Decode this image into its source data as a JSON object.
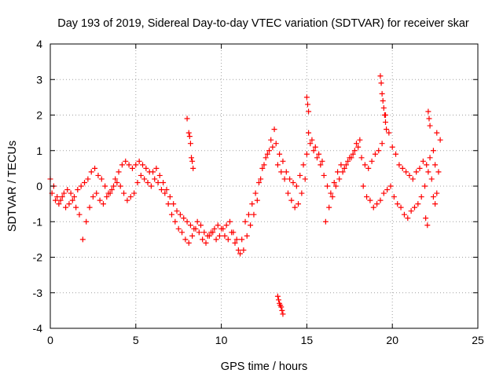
{
  "chart_data": {
    "type": "scatter",
    "title": "Day 193 of 2019, Sidereal Day-to-day VTEC variation (SDTVAR) for receiver skar",
    "xlabel": "GPS time / hours",
    "ylabel": "SDTVAR / TECUs",
    "xlim": [
      0,
      25
    ],
    "ylim": [
      -4,
      4
    ],
    "xticks": [
      0,
      5,
      10,
      15,
      20,
      25
    ],
    "yticks": [
      -4,
      -3,
      -2,
      -1,
      0,
      1,
      2,
      3,
      4
    ],
    "grid": true,
    "marker": "+",
    "marker_color": "#ff0000",
    "series": [
      {
        "name": "SDTVAR",
        "x": [
          0.0,
          0.2,
          0.4,
          0.6,
          0.8,
          1.0,
          1.2,
          1.4,
          1.6,
          1.8,
          2.0,
          2.2,
          2.4,
          2.6,
          2.8,
          3.0,
          3.2,
          3.4,
          3.6,
          3.8,
          4.0,
          4.2,
          4.4,
          4.6,
          4.8,
          5.0,
          5.2,
          5.4,
          5.6,
          5.8,
          6.0,
          6.2,
          6.4,
          6.6,
          6.8,
          7.0,
          7.2,
          7.4,
          7.6,
          7.8,
          8.0,
          8.2,
          8.4,
          8.6,
          8.8,
          9.0,
          9.2,
          9.4,
          9.6,
          9.8,
          10.0,
          10.2,
          10.4,
          10.6,
          10.8,
          11.0,
          11.2,
          11.4,
          11.6,
          11.8,
          12.0,
          12.2,
          12.4,
          12.6,
          12.8,
          13.0,
          13.2,
          13.4,
          13.6,
          13.8,
          14.0,
          14.2,
          14.4,
          14.6,
          14.8,
          15.0,
          15.2,
          15.4,
          15.6,
          15.8,
          16.0,
          16.2,
          16.4,
          16.6,
          16.8,
          17.0,
          17.2,
          17.4,
          17.6,
          17.8,
          18.0,
          18.2,
          18.4,
          18.6,
          18.8,
          19.0,
          19.2,
          19.4,
          19.6,
          19.8,
          20.0,
          20.2,
          20.4,
          20.6,
          20.8,
          21.0,
          21.2,
          21.4,
          21.6,
          21.8,
          22.0,
          22.2,
          22.4,
          22.6,
          22.8
        ],
        "y": [
          0.2,
          0.0,
          -0.3,
          -0.4,
          -0.2,
          -0.1,
          -0.2,
          -0.3,
          -0.1,
          0.0,
          0.1,
          0.2,
          0.4,
          0.5,
          0.3,
          0.2,
          0.0,
          -0.2,
          -0.1,
          0.2,
          0.4,
          0.6,
          0.7,
          0.6,
          0.5,
          0.6,
          0.7,
          0.6,
          0.5,
          0.4,
          0.4,
          0.5,
          0.3,
          0.1,
          -0.1,
          -0.3,
          -0.5,
          -0.7,
          -0.8,
          -0.9,
          -1.0,
          -1.1,
          -1.2,
          -1.0,
          -1.1,
          -1.3,
          -1.4,
          -1.3,
          -1.2,
          -1.1,
          -1.2,
          -1.4,
          -1.5,
          -1.3,
          -1.6,
          -1.8,
          -1.5,
          -1.0,
          -0.8,
          -0.5,
          -0.2,
          0.1,
          0.5,
          0.8,
          1.0,
          1.1,
          1.2,
          0.9,
          0.7,
          0.4,
          0.2,
          0.1,
          0.0,
          0.3,
          0.6,
          0.9,
          1.2,
          1.0,
          0.8,
          0.6,
          0.3,
          0.0,
          -0.2,
          0.1,
          0.4,
          0.6,
          0.5,
          0.7,
          0.8,
          1.0,
          1.1,
          0.8,
          0.6,
          0.5,
          0.7,
          0.9,
          1.0,
          1.2,
          2.0,
          1.5,
          1.1,
          0.9,
          0.6,
          0.5,
          0.4,
          0.3,
          0.2,
          0.4,
          0.5,
          0.7,
          0.6,
          0.8,
          1.0,
          1.5,
          1.3
        ]
      },
      {
        "name": "SDTVAR",
        "x": [
          0.1,
          0.3,
          0.5,
          0.7,
          0.9,
          1.1,
          1.3,
          1.5,
          1.7,
          1.9,
          2.1,
          2.3,
          2.5,
          2.7,
          2.9,
          3.1,
          3.3,
          3.5,
          3.7,
          3.9,
          4.1,
          4.3,
          4.5,
          4.7,
          4.9,
          5.1,
          5.3,
          5.5,
          5.7,
          5.9,
          6.1,
          6.3,
          6.5,
          6.7,
          6.9,
          7.1,
          7.3,
          7.5,
          7.7,
          7.9,
          8.1,
          8.3,
          8.5,
          8.7,
          8.9,
          9.1,
          9.3,
          9.5,
          9.7,
          9.9,
          10.1,
          10.3,
          10.5,
          10.7,
          10.9,
          11.1,
          11.3,
          11.5,
          11.7,
          11.9,
          12.1,
          12.3,
          12.5,
          12.7,
          12.9,
          13.1,
          13.3,
          13.5,
          13.7,
          13.9,
          14.1,
          14.3,
          14.5,
          14.7,
          14.9,
          15.1,
          15.3,
          15.5,
          15.7,
          15.9,
          16.1,
          16.3,
          16.5,
          16.7,
          16.9,
          17.1,
          17.3,
          17.5,
          17.7,
          17.9,
          18.1,
          18.3,
          18.5,
          18.7,
          18.9,
          19.1,
          19.3,
          19.5,
          19.7,
          19.9,
          20.1,
          20.3,
          20.5,
          20.7,
          20.9,
          21.1,
          21.3,
          21.5,
          21.7,
          21.9,
          22.1,
          22.3,
          22.5,
          22.7
        ],
        "y": [
          -0.2,
          -0.4,
          -0.5,
          -0.3,
          -0.6,
          -0.5,
          -0.4,
          -0.6,
          -0.8,
          -1.5,
          -1.0,
          -0.6,
          -0.3,
          -0.2,
          -0.4,
          -0.5,
          -0.3,
          -0.2,
          0.0,
          0.1,
          0.0,
          -0.2,
          -0.4,
          -0.3,
          -0.2,
          0.1,
          0.3,
          0.2,
          0.1,
          0.0,
          0.2,
          0.1,
          -0.1,
          -0.2,
          -0.5,
          -0.8,
          -1.0,
          -1.2,
          -1.3,
          -1.5,
          -1.6,
          -1.4,
          -1.2,
          -1.3,
          -1.5,
          -1.6,
          -1.4,
          -1.3,
          -1.5,
          -1.4,
          -1.2,
          -1.1,
          -1.0,
          -1.3,
          -1.5,
          -1.9,
          -1.8,
          -1.4,
          -1.1,
          -0.8,
          -0.4,
          0.2,
          0.6,
          0.9,
          1.3,
          1.6,
          0.6,
          0.4,
          0.2,
          -0.2,
          -0.4,
          -0.6,
          -0.5,
          -0.2,
          0.2,
          1.5,
          1.3,
          1.1,
          0.9,
          0.7,
          -1.0,
          -0.6,
          -0.3,
          0.0,
          0.2,
          0.4,
          0.6,
          0.8,
          0.9,
          1.2,
          1.3,
          0.0,
          -0.3,
          -0.4,
          -0.6,
          -0.5,
          -0.4,
          -0.2,
          -0.1,
          0.0,
          -0.3,
          -0.5,
          -0.6,
          -0.8,
          -0.9,
          -0.7,
          -0.6,
          -0.5,
          -0.3,
          0.0,
          0.4,
          0.2,
          0.6,
          0.4
        ]
      },
      {
        "name": "SDTVAR",
        "x": [
          8.0,
          8.1,
          8.15,
          8.2,
          8.25,
          8.3,
          8.35,
          13.3,
          13.35,
          13.4,
          13.45,
          13.5,
          13.55,
          13.6,
          15.0,
          15.05,
          15.1,
          19.3,
          19.35,
          19.4,
          19.45,
          19.5,
          19.55,
          19.6,
          19.65,
          22.1,
          22.15,
          22.2,
          21.95,
          22.05,
          22.4,
          22.5,
          22.6
        ],
        "y": [
          1.9,
          1.5,
          1.4,
          1.2,
          0.8,
          0.7,
          0.5,
          -3.1,
          -3.2,
          -3.3,
          -3.35,
          -3.4,
          -3.5,
          -3.6,
          2.5,
          2.3,
          2.1,
          3.1,
          2.9,
          2.6,
          2.4,
          2.2,
          2.0,
          1.8,
          1.6,
          2.1,
          1.9,
          1.7,
          -0.9,
          -1.1,
          -0.3,
          -0.5,
          -0.2
        ]
      }
    ]
  }
}
